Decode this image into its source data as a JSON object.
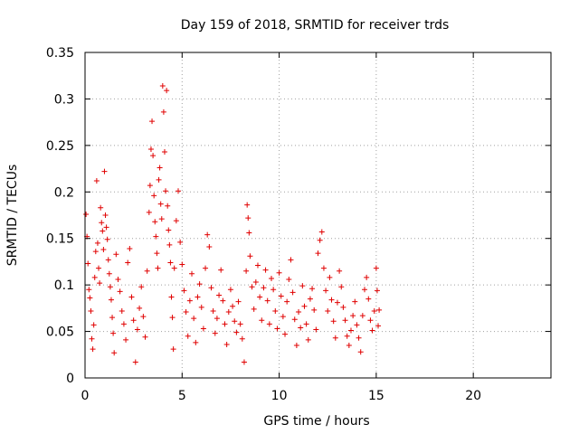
{
  "chart_data": {
    "type": "scatter",
    "title": "Day 159 of 2018, SRMTID for receiver trds",
    "xlabel": "GPS time / hours",
    "ylabel": "SRMTID / TECUs",
    "xlim": [
      0,
      24
    ],
    "ylim": [
      0,
      0.35
    ],
    "xticks": [
      0,
      5,
      10,
      15,
      20
    ],
    "xtick_labels": [
      "0",
      "5",
      "10",
      "15",
      "20"
    ],
    "yticks": [
      0,
      0.05,
      0.1,
      0.15,
      0.2,
      0.25,
      0.3,
      0.35
    ],
    "ytick_labels": [
      "0",
      "0.05",
      "0.1",
      "0.15",
      "0.2",
      "0.25",
      "0.3",
      "0.35"
    ],
    "grid": true,
    "marker": "plus",
    "color": "#e00000",
    "series": [
      {
        "name": "SRMTID",
        "points": [
          [
            0.05,
            0.176
          ],
          [
            0.1,
            0.152
          ],
          [
            0.15,
            0.123
          ],
          [
            0.2,
            0.095
          ],
          [
            0.25,
            0.086
          ],
          [
            0.3,
            0.072
          ],
          [
            0.35,
            0.042
          ],
          [
            0.4,
            0.031
          ],
          [
            0.45,
            0.057
          ],
          [
            0.5,
            0.108
          ],
          [
            0.55,
            0.136
          ],
          [
            0.6,
            0.212
          ],
          [
            0.65,
            0.145
          ],
          [
            0.7,
            0.118
          ],
          [
            0.75,
            0.102
          ],
          [
            0.8,
            0.183
          ],
          [
            0.85,
            0.167
          ],
          [
            0.9,
            0.158
          ],
          [
            0.95,
            0.138
          ],
          [
            1.0,
            0.222
          ],
          [
            1.05,
            0.175
          ],
          [
            1.1,
            0.162
          ],
          [
            1.15,
            0.149
          ],
          [
            1.2,
            0.127
          ],
          [
            1.25,
            0.112
          ],
          [
            1.3,
            0.098
          ],
          [
            1.35,
            0.084
          ],
          [
            1.4,
            0.065
          ],
          [
            1.45,
            0.048
          ],
          [
            1.5,
            0.027
          ],
          [
            1.6,
            0.133
          ],
          [
            1.7,
            0.106
          ],
          [
            1.8,
            0.093
          ],
          [
            1.9,
            0.072
          ],
          [
            2.0,
            0.058
          ],
          [
            2.1,
            0.041
          ],
          [
            2.2,
            0.124
          ],
          [
            2.3,
            0.139
          ],
          [
            2.4,
            0.087
          ],
          [
            2.5,
            0.062
          ],
          [
            2.6,
            0.017
          ],
          [
            2.7,
            0.052
          ],
          [
            2.8,
            0.075
          ],
          [
            2.9,
            0.098
          ],
          [
            3.0,
            0.066
          ],
          [
            3.1,
            0.044
          ],
          [
            3.2,
            0.115
          ],
          [
            3.3,
            0.178
          ],
          [
            3.35,
            0.207
          ],
          [
            3.4,
            0.246
          ],
          [
            3.45,
            0.276
          ],
          [
            3.5,
            0.239
          ],
          [
            3.55,
            0.196
          ],
          [
            3.6,
            0.168
          ],
          [
            3.65,
            0.152
          ],
          [
            3.7,
            0.134
          ],
          [
            3.75,
            0.118
          ],
          [
            3.8,
            0.213
          ],
          [
            3.85,
            0.226
          ],
          [
            3.9,
            0.187
          ],
          [
            3.95,
            0.171
          ],
          [
            4.0,
            0.314
          ],
          [
            4.05,
            0.286
          ],
          [
            4.1,
            0.243
          ],
          [
            4.15,
            0.201
          ],
          [
            4.2,
            0.309
          ],
          [
            4.25,
            0.185
          ],
          [
            4.3,
            0.159
          ],
          [
            4.35,
            0.143
          ],
          [
            4.4,
            0.124
          ],
          [
            4.45,
            0.087
          ],
          [
            4.5,
            0.065
          ],
          [
            4.55,
            0.031
          ],
          [
            4.6,
            0.118
          ],
          [
            4.7,
            0.169
          ],
          [
            4.8,
            0.201
          ],
          [
            4.9,
            0.146
          ],
          [
            5.0,
            0.122
          ],
          [
            5.1,
            0.094
          ],
          [
            5.2,
            0.071
          ],
          [
            5.3,
            0.045
          ],
          [
            5.4,
            0.083
          ],
          [
            5.5,
            0.112
          ],
          [
            5.6,
            0.064
          ],
          [
            5.7,
            0.038
          ],
          [
            5.8,
            0.087
          ],
          [
            5.9,
            0.101
          ],
          [
            6.0,
            0.076
          ],
          [
            6.1,
            0.053
          ],
          [
            6.2,
            0.118
          ],
          [
            6.3,
            0.154
          ],
          [
            6.4,
            0.141
          ],
          [
            6.5,
            0.097
          ],
          [
            6.6,
            0.072
          ],
          [
            6.7,
            0.048
          ],
          [
            6.8,
            0.064
          ],
          [
            6.9,
            0.089
          ],
          [
            7.0,
            0.116
          ],
          [
            7.1,
            0.083
          ],
          [
            7.2,
            0.058
          ],
          [
            7.3,
            0.036
          ],
          [
            7.4,
            0.071
          ],
          [
            7.5,
            0.095
          ],
          [
            7.6,
            0.077
          ],
          [
            7.7,
            0.061
          ],
          [
            7.8,
            0.049
          ],
          [
            7.9,
            0.082
          ],
          [
            8.0,
            0.058
          ],
          [
            8.1,
            0.042
          ],
          [
            8.2,
            0.017
          ],
          [
            8.3,
            0.115
          ],
          [
            8.35,
            0.186
          ],
          [
            8.4,
            0.172
          ],
          [
            8.45,
            0.156
          ],
          [
            8.5,
            0.131
          ],
          [
            8.6,
            0.098
          ],
          [
            8.7,
            0.074
          ],
          [
            8.8,
            0.103
          ],
          [
            8.9,
            0.121
          ],
          [
            9.0,
            0.087
          ],
          [
            9.1,
            0.062
          ],
          [
            9.2,
            0.097
          ],
          [
            9.3,
            0.116
          ],
          [
            9.4,
            0.083
          ],
          [
            9.5,
            0.058
          ],
          [
            9.6,
            0.107
          ],
          [
            9.7,
            0.095
          ],
          [
            9.8,
            0.072
          ],
          [
            9.9,
            0.053
          ],
          [
            10.0,
            0.113
          ],
          [
            10.1,
            0.088
          ],
          [
            10.2,
            0.066
          ],
          [
            10.3,
            0.047
          ],
          [
            10.4,
            0.082
          ],
          [
            10.5,
            0.106
          ],
          [
            10.6,
            0.127
          ],
          [
            10.7,
            0.092
          ],
          [
            10.8,
            0.063
          ],
          [
            10.9,
            0.035
          ],
          [
            11.0,
            0.071
          ],
          [
            11.1,
            0.054
          ],
          [
            11.2,
            0.099
          ],
          [
            11.3,
            0.077
          ],
          [
            11.4,
            0.058
          ],
          [
            11.5,
            0.041
          ],
          [
            11.6,
            0.085
          ],
          [
            11.7,
            0.096
          ],
          [
            11.8,
            0.073
          ],
          [
            11.9,
            0.052
          ],
          [
            12.0,
            0.134
          ],
          [
            12.1,
            0.148
          ],
          [
            12.2,
            0.157
          ],
          [
            12.3,
            0.118
          ],
          [
            12.4,
            0.094
          ],
          [
            12.5,
            0.072
          ],
          [
            12.6,
            0.108
          ],
          [
            12.7,
            0.084
          ],
          [
            12.8,
            0.061
          ],
          [
            12.9,
            0.043
          ],
          [
            13.0,
            0.081
          ],
          [
            13.1,
            0.115
          ],
          [
            13.2,
            0.098
          ],
          [
            13.3,
            0.076
          ],
          [
            13.4,
            0.062
          ],
          [
            13.5,
            0.045
          ],
          [
            13.6,
            0.035
          ],
          [
            13.7,
            0.051
          ],
          [
            13.8,
            0.067
          ],
          [
            13.9,
            0.082
          ],
          [
            14.0,
            0.057
          ],
          [
            14.1,
            0.043
          ],
          [
            14.2,
            0.028
          ],
          [
            14.3,
            0.067
          ],
          [
            14.4,
            0.095
          ],
          [
            14.5,
            0.108
          ],
          [
            14.6,
            0.085
          ],
          [
            14.7,
            0.062
          ],
          [
            14.8,
            0.051
          ],
          [
            14.9,
            0.072
          ],
          [
            15.0,
            0.118
          ],
          [
            15.05,
            0.094
          ],
          [
            15.1,
            0.056
          ],
          [
            15.15,
            0.073
          ]
        ]
      }
    ]
  }
}
